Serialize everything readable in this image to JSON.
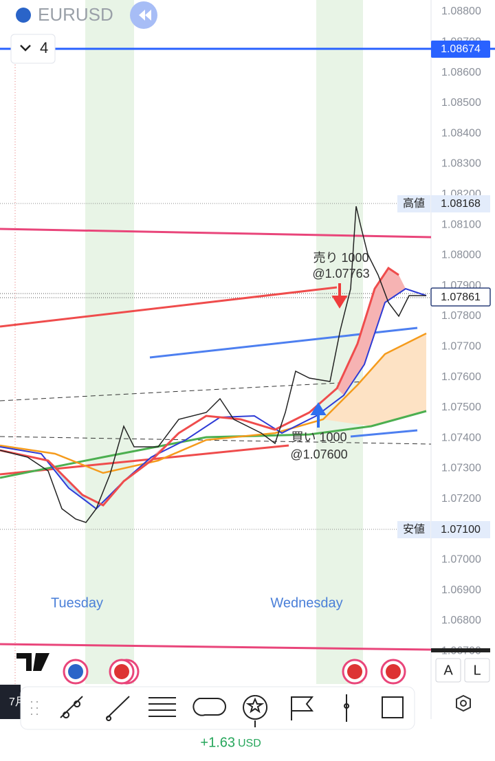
{
  "header": {
    "symbol": "EURUSD",
    "interval": "4"
  },
  "price_axis": {
    "ticks": [
      "1.08800",
      "1.08700",
      "1.08600",
      "1.08500",
      "1.08400",
      "1.08300",
      "1.08200",
      "1.08100",
      "1.08000",
      "1.07900",
      "1.07800",
      "1.07700",
      "1.07600",
      "1.07500",
      "1.07400",
      "1.07300",
      "1.07200",
      "1.07000",
      "1.06900",
      "1.06800",
      "1.06700"
    ]
  },
  "chart": {
    "line_price": "1.08674",
    "high_label": "高値",
    "high": "1.08168",
    "current": "1.07861",
    "low_label": "安値",
    "low": "1.07100",
    "sell": {
      "label": "売り 1000",
      "price": "@1.07763"
    },
    "buy": {
      "label": "買い 1000",
      "price": "@1.07600"
    },
    "days": [
      "Tuesday",
      "Wednesday"
    ]
  },
  "time_axis": {
    "label": "7月"
  },
  "buttons": {
    "a": "A",
    "l": "L"
  },
  "footer": {
    "pnl": "+1.63",
    "currency": "USD"
  }
}
